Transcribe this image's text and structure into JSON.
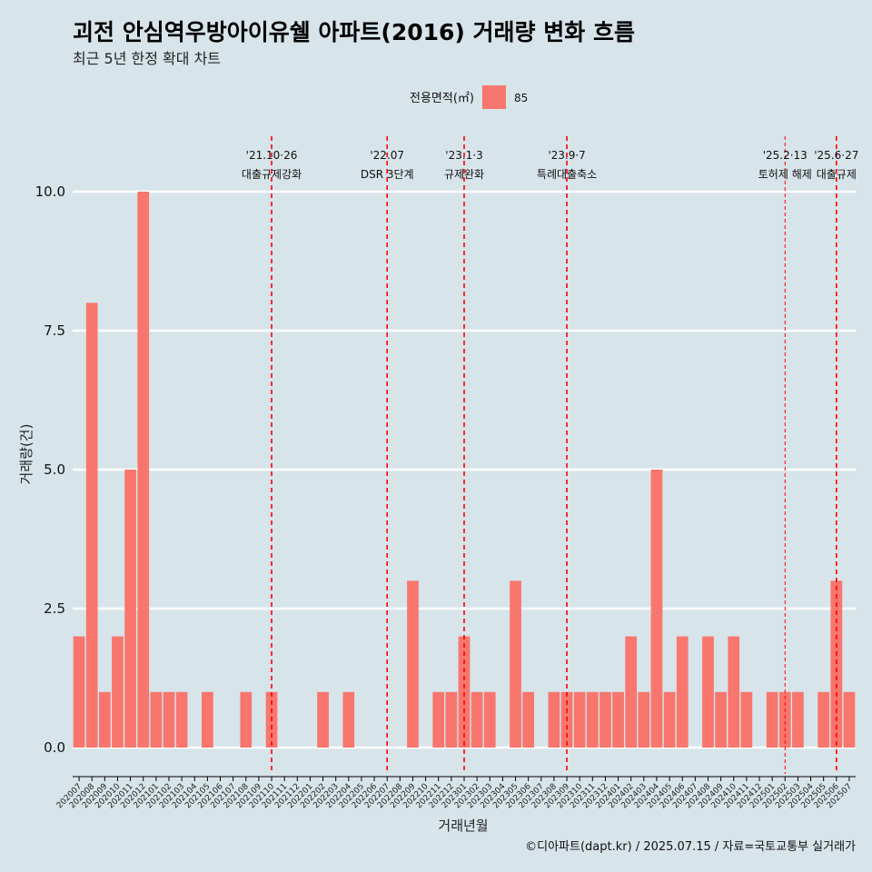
{
  "chart_data": {
    "type": "bar",
    "title": "괴전 안심역우방아이유쉘 아파트(2016) 거래량 변화 흐름",
    "subtitle": "최근 5년 한정 확대 차트",
    "xlabel": "거래년월",
    "ylabel": "거래량(건)",
    "ylim": [
      0,
      10
    ],
    "yticks": [
      "0.0",
      "2.5",
      "5.0",
      "7.5",
      "10.0"
    ],
    "legend": {
      "title": "전용면적(㎡)",
      "entries": [
        "85"
      ],
      "position": "top"
    },
    "bar_color": "#f8766d",
    "grid": "horizontal",
    "categories": [
      "202007",
      "202008",
      "202009",
      "202010",
      "202011",
      "202012",
      "202101",
      "202102",
      "202103",
      "202104",
      "202105",
      "202106",
      "202107",
      "202108",
      "202109",
      "202110",
      "202111",
      "202112",
      "202201",
      "202202",
      "202203",
      "202204",
      "202205",
      "202206",
      "202207",
      "202208",
      "202209",
      "202210",
      "202211",
      "202212",
      "202301",
      "202302",
      "202303",
      "202304",
      "202305",
      "202306",
      "202307",
      "202308",
      "202309",
      "202310",
      "202311",
      "202312",
      "202401",
      "202402",
      "202403",
      "202404",
      "202405",
      "202406",
      "202407",
      "202408",
      "202409",
      "202410",
      "202411",
      "202412",
      "202501",
      "202502",
      "202503",
      "202504",
      "202505",
      "202506",
      "202507"
    ],
    "values": [
      2,
      8,
      1,
      2,
      5,
      10,
      1,
      1,
      1,
      0,
      1,
      0,
      0,
      1,
      0,
      1,
      0,
      0,
      0,
      1,
      0,
      1,
      0,
      0,
      0,
      0,
      3,
      0,
      1,
      1,
      2,
      1,
      1,
      0,
      3,
      1,
      0,
      1,
      1,
      1,
      1,
      1,
      1,
      2,
      1,
      5,
      1,
      2,
      0,
      2,
      1,
      2,
      1,
      0,
      1,
      1,
      1,
      0,
      1,
      3,
      1
    ],
    "events": [
      {
        "date": "'21.10·26",
        "label": "대출규제강화",
        "at": "202110",
        "style": "dashed"
      },
      {
        "date": "'22.07",
        "label": "DSR 3단계",
        "at": "202207",
        "style": "dashed"
      },
      {
        "date": "'23.1·3",
        "label": "규제완화",
        "at": "202301",
        "style": "dashed"
      },
      {
        "date": "'23.9·7",
        "label": "특례대출축소",
        "at": "202309",
        "style": "dashed"
      },
      {
        "date": "'25.2·13",
        "label": "토허제 해제",
        "at": "202502",
        "style": "thin-dashed"
      },
      {
        "date": "'25.6·27",
        "label": "대출규제",
        "at": "202506",
        "style": "dashed"
      }
    ],
    "caption": "©디아파트(dapt.kr) / 2025.07.15 / 자료=국토교통부 실거래가"
  }
}
